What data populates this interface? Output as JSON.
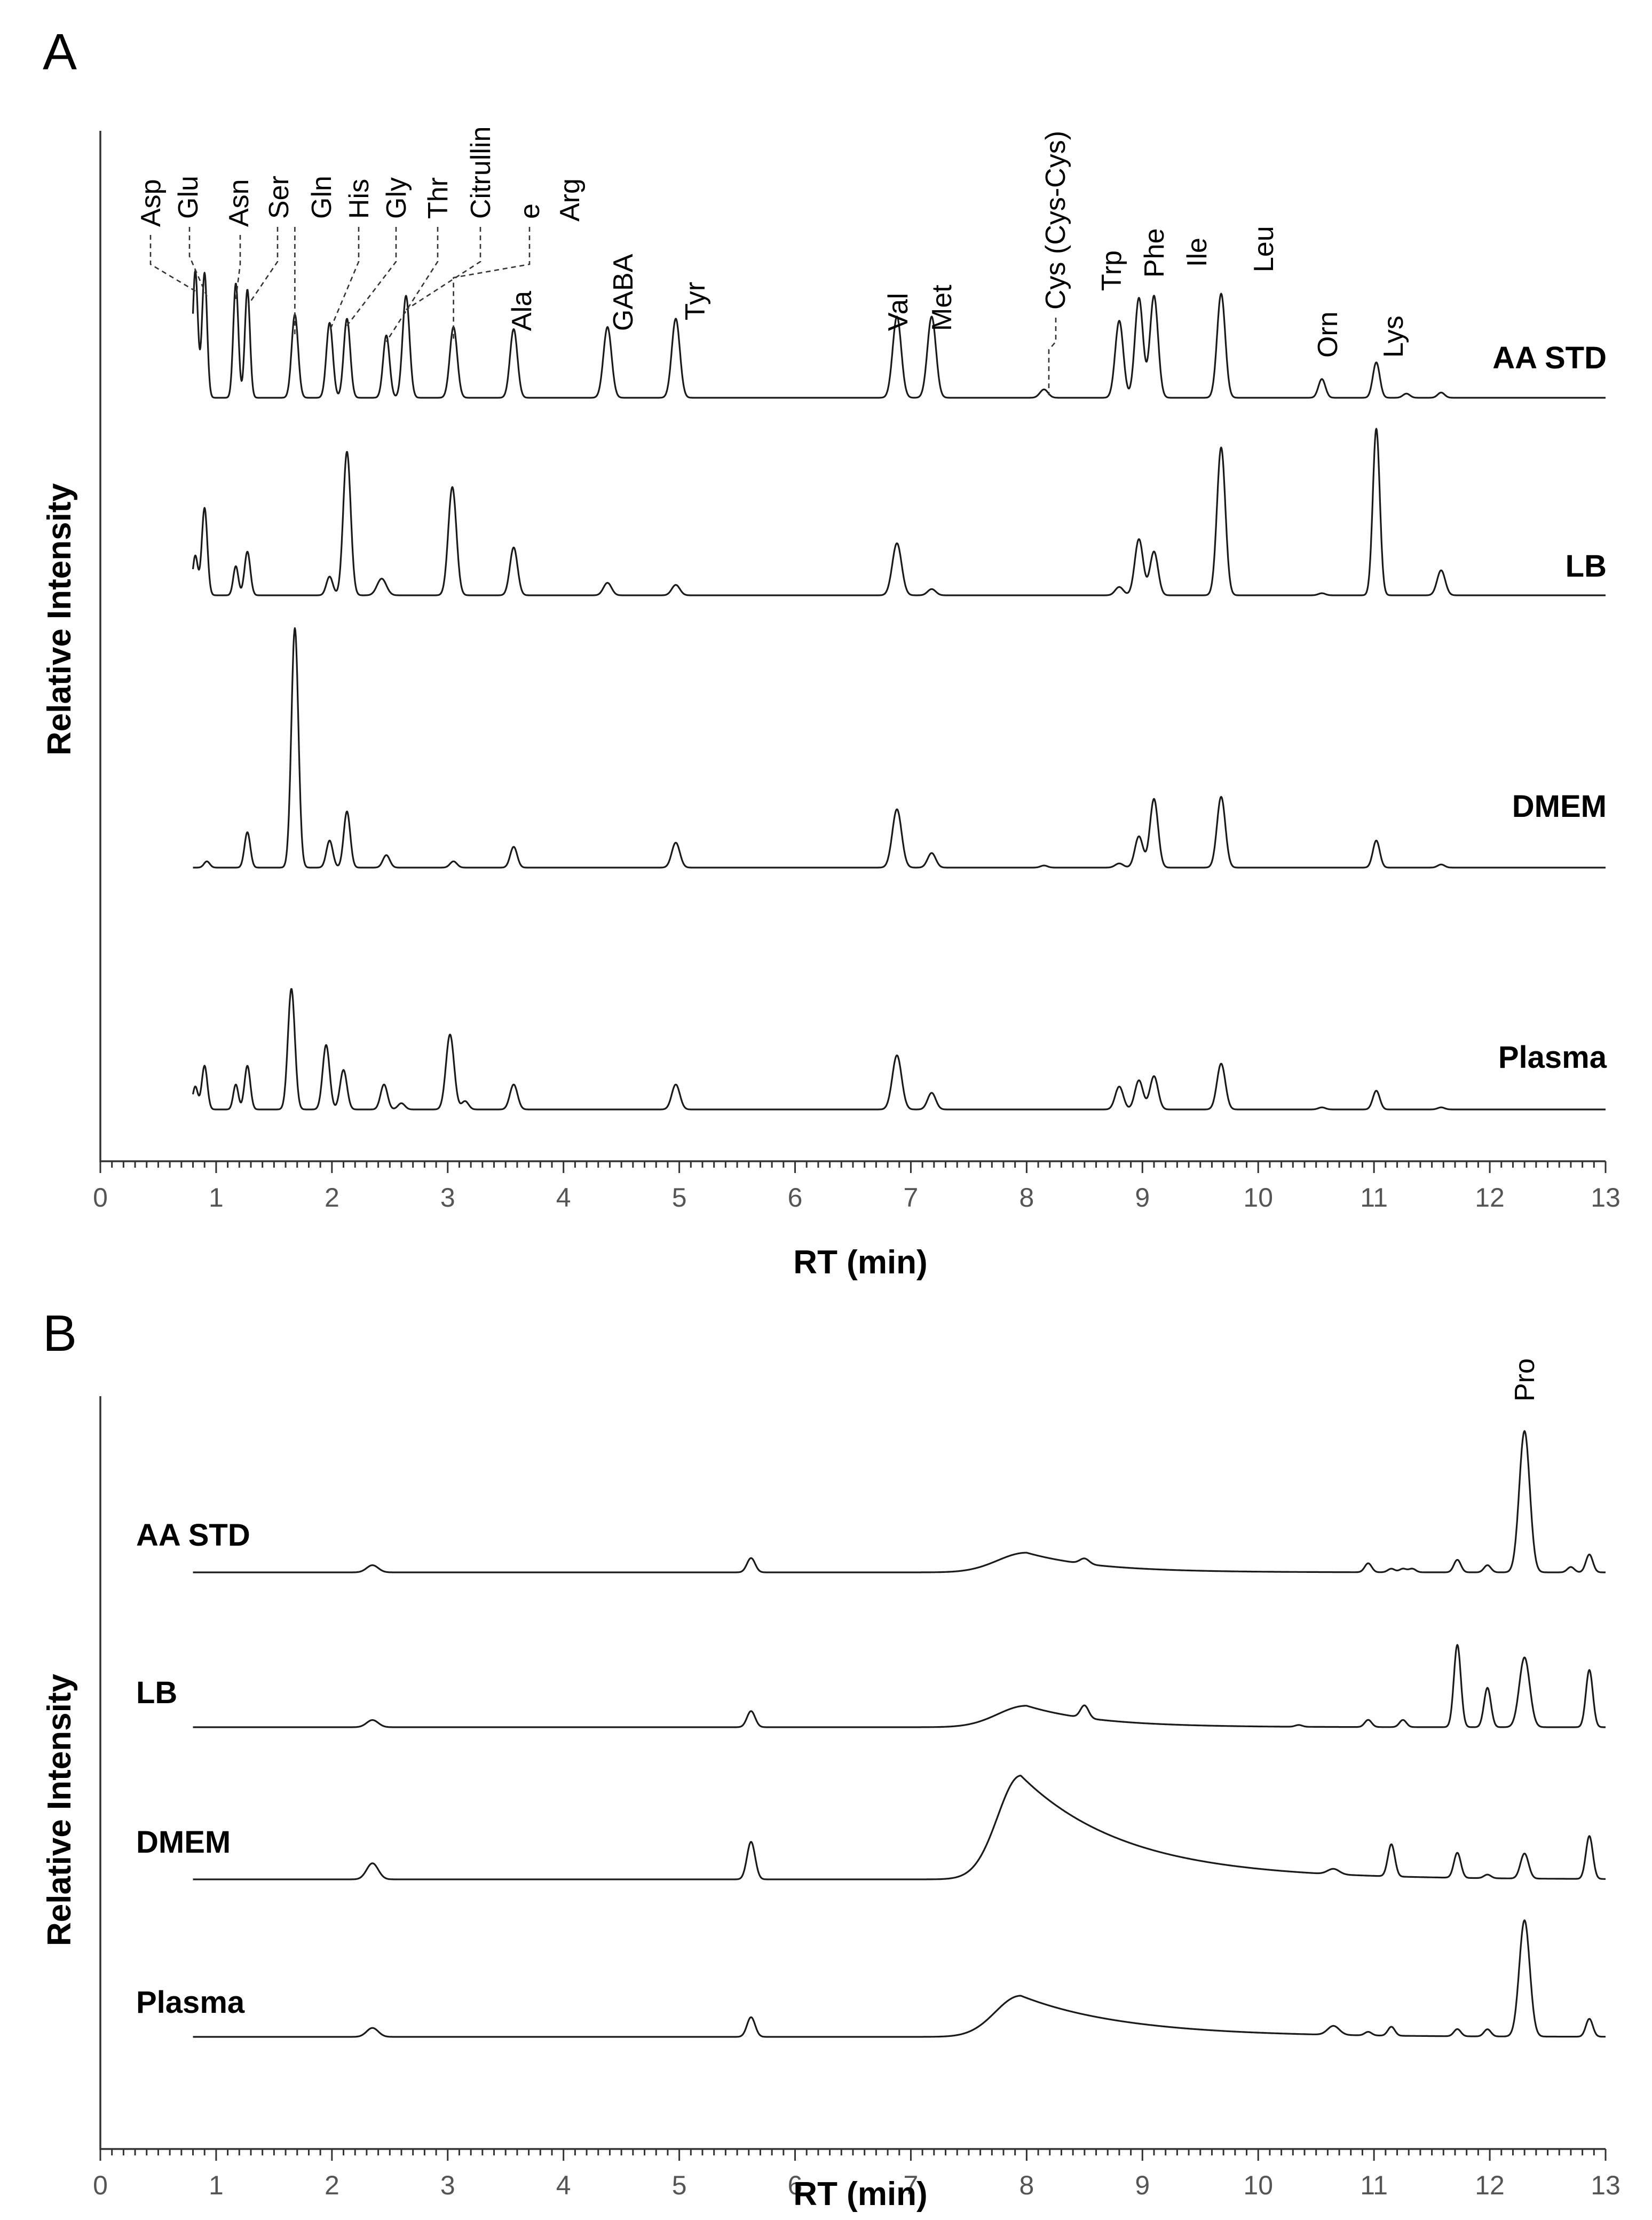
{
  "chart_data": [
    {
      "type": "line",
      "panel": "A",
      "xlabel": "RT (min)",
      "ylabel": "Relative Intensity",
      "xlim": [
        0,
        13
      ],
      "x_ticks": [
        "0",
        "1",
        "2",
        "3",
        "4",
        "5",
        "6",
        "7",
        "8",
        "9",
        "10",
        "11",
        "12",
        "13"
      ],
      "grid": false,
      "peak_labels": [
        {
          "text": "Asp",
          "rt": 0.82
        },
        {
          "text": "Glu",
          "rt": 0.92
        },
        {
          "text": "Asn",
          "rt": 1.17
        },
        {
          "text": "Ser",
          "rt": 1.28
        },
        {
          "text": "Gln",
          "rt": 1.68
        },
        {
          "text": "His",
          "rt": 1.98
        },
        {
          "text": "Gly",
          "rt": 2.13
        },
        {
          "text": "Thr",
          "rt": 2.47
        },
        {
          "text": "Citrullin",
          "rt": 2.64
        },
        {
          "text": "e",
          "rt": 3.05
        },
        {
          "text": "Arg",
          "rt": 3.05
        },
        {
          "text": "Ala",
          "rt": 3.57
        },
        {
          "text": "GABA",
          "rt": 4.38
        },
        {
          "text": "Tyr",
          "rt": 4.97
        },
        {
          "text": "Val",
          "rt": 6.88
        },
        {
          "text": "Met",
          "rt": 7.18
        },
        {
          "text": "Cys (Cys-Cys)",
          "rt": 8.15
        },
        {
          "text": "Trp",
          "rt": 8.8
        },
        {
          "text": "Phe",
          "rt": 8.97
        },
        {
          "text": "Ile",
          "rt": 9.1
        },
        {
          "text": "Leu",
          "rt": 9.68
        },
        {
          "text": "Orn",
          "rt": 10.55
        },
        {
          "text": "Lys",
          "rt": 11.02
        }
      ],
      "series": [
        {
          "name": "AA STD",
          "peaks": [
            [
              0.82,
              0.61,
              0.022
            ],
            [
              0.9,
              0.6,
              0.022
            ],
            [
              1.17,
              0.55,
              0.022
            ],
            [
              1.27,
              0.52,
              0.022
            ],
            [
              1.68,
              0.4,
              0.028
            ],
            [
              1.98,
              0.36,
              0.028
            ],
            [
              2.13,
              0.38,
              0.028
            ],
            [
              2.47,
              0.3,
              0.028
            ],
            [
              2.64,
              0.49,
              0.03
            ],
            [
              3.05,
              0.34,
              0.032
            ],
            [
              3.57,
              0.33,
              0.032
            ],
            [
              4.38,
              0.34,
              0.035
            ],
            [
              4.97,
              0.38,
              0.035
            ],
            [
              6.88,
              0.39,
              0.037
            ],
            [
              7.18,
              0.39,
              0.037
            ],
            [
              8.15,
              0.04,
              0.035
            ],
            [
              8.8,
              0.37,
              0.035
            ],
            [
              8.97,
              0.48,
              0.035
            ],
            [
              9.1,
              0.49,
              0.035
            ],
            [
              9.68,
              0.5,
              0.035
            ],
            [
              10.55,
              0.09,
              0.03
            ],
            [
              11.02,
              0.17,
              0.03
            ],
            [
              11.28,
              0.02,
              0.03
            ],
            [
              11.58,
              0.025,
              0.03
            ]
          ]
        },
        {
          "name": "LB",
          "peaks": [
            [
              0.82,
              0.19,
              0.022
            ],
            [
              0.9,
              0.42,
              0.024
            ],
            [
              1.17,
              0.14,
              0.022
            ],
            [
              1.27,
              0.21,
              0.025
            ],
            [
              1.98,
              0.09,
              0.028
            ],
            [
              2.13,
              0.69,
              0.032
            ],
            [
              2.43,
              0.08,
              0.04
            ],
            [
              3.04,
              0.52,
              0.035
            ],
            [
              3.57,
              0.23,
              0.033
            ],
            [
              4.38,
              0.06,
              0.035
            ],
            [
              4.97,
              0.05,
              0.035
            ],
            [
              6.88,
              0.25,
              0.04
            ],
            [
              7.18,
              0.03,
              0.035
            ],
            [
              8.8,
              0.04,
              0.035
            ],
            [
              8.97,
              0.27,
              0.036
            ],
            [
              9.1,
              0.21,
              0.035
            ],
            [
              9.68,
              0.71,
              0.036
            ],
            [
              10.55,
              0.01,
              0.03
            ],
            [
              11.02,
              0.8,
              0.03
            ],
            [
              11.58,
              0.12,
              0.035
            ]
          ]
        },
        {
          "name": "DMEM",
          "peaks": [
            [
              0.92,
              0.03,
              0.025
            ],
            [
              1.27,
              0.17,
              0.025
            ],
            [
              1.68,
              1.15,
              0.03
            ],
            [
              1.98,
              0.13,
              0.028
            ],
            [
              2.13,
              0.27,
              0.028
            ],
            [
              2.47,
              0.06,
              0.03
            ],
            [
              3.05,
              0.03,
              0.03
            ],
            [
              3.57,
              0.1,
              0.03
            ],
            [
              4.97,
              0.12,
              0.035
            ],
            [
              6.88,
              0.28,
              0.04
            ],
            [
              7.18,
              0.07,
              0.035
            ],
            [
              8.15,
              0.01,
              0.03
            ],
            [
              8.8,
              0.02,
              0.035
            ],
            [
              8.97,
              0.15,
              0.035
            ],
            [
              9.1,
              0.33,
              0.035
            ],
            [
              9.68,
              0.34,
              0.036
            ],
            [
              11.02,
              0.13,
              0.03
            ],
            [
              11.58,
              0.015,
              0.03
            ]
          ]
        },
        {
          "name": "Plasma",
          "peaks": [
            [
              0.82,
              0.11,
              0.022
            ],
            [
              0.9,
              0.21,
              0.024
            ],
            [
              1.17,
              0.12,
              0.022
            ],
            [
              1.27,
              0.21,
              0.025
            ],
            [
              1.65,
              0.58,
              0.03
            ],
            [
              1.95,
              0.31,
              0.03
            ],
            [
              2.1,
              0.19,
              0.03
            ],
            [
              2.45,
              0.12,
              0.03
            ],
            [
              2.6,
              0.03,
              0.03
            ],
            [
              3.02,
              0.36,
              0.035
            ],
            [
              3.15,
              0.04,
              0.03
            ],
            [
              3.57,
              0.12,
              0.033
            ],
            [
              4.97,
              0.12,
              0.035
            ],
            [
              6.88,
              0.26,
              0.04
            ],
            [
              7.18,
              0.08,
              0.035
            ],
            [
              8.8,
              0.11,
              0.035
            ],
            [
              8.97,
              0.14,
              0.035
            ],
            [
              9.1,
              0.16,
              0.035
            ],
            [
              9.68,
              0.22,
              0.036
            ],
            [
              10.55,
              0.01,
              0.03
            ],
            [
              11.02,
              0.09,
              0.03
            ],
            [
              11.58,
              0.01,
              0.03
            ]
          ]
        }
      ]
    },
    {
      "type": "line",
      "panel": "B",
      "xlabel": "RT (min)",
      "ylabel": "Relative Intensity",
      "xlim": [
        0,
        13
      ],
      "x_ticks": [
        "0",
        "1",
        "2",
        "3",
        "4",
        "5",
        "6",
        "7",
        "8",
        "9",
        "10",
        "11",
        "12",
        "13"
      ],
      "grid": false,
      "peak_labels": [
        {
          "text": "Pro",
          "rt": 12.3
        }
      ],
      "series": [
        {
          "name": "AA STD",
          "peaks": [
            [
              2.35,
              0.04,
              0.05
            ],
            [
              5.62,
              0.08,
              0.035
            ],
            [
              8.5,
              0.03,
              0.04
            ],
            [
              10.95,
              0.05,
              0.03
            ],
            [
              11.15,
              0.02,
              0.03
            ],
            [
              11.25,
              0.02,
              0.03
            ],
            [
              11.33,
              0.02,
              0.03
            ],
            [
              11.72,
              0.07,
              0.03
            ],
            [
              11.98,
              0.04,
              0.03
            ],
            [
              12.3,
              0.79,
              0.045
            ],
            [
              12.7,
              0.03,
              0.03
            ],
            [
              12.86,
              0.1,
              0.03
            ]
          ],
          "humps": [
            [
              8.0,
              0.11,
              0.25,
              0.6
            ]
          ]
        },
        {
          "name": "LB",
          "peaks": [
            [
              2.35,
              0.04,
              0.05
            ],
            [
              5.62,
              0.09,
              0.035
            ],
            [
              8.5,
              0.07,
              0.035
            ],
            [
              10.35,
              0.01,
              0.03
            ],
            [
              10.95,
              0.04,
              0.03
            ],
            [
              11.25,
              0.04,
              0.03
            ],
            [
              11.72,
              0.46,
              0.03
            ],
            [
              11.98,
              0.22,
              0.03
            ],
            [
              12.3,
              0.39,
              0.045
            ],
            [
              12.86,
              0.32,
              0.03
            ]
          ],
          "humps": [
            [
              8.0,
              0.12,
              0.25,
              0.6
            ]
          ]
        },
        {
          "name": "DMEM",
          "peaks": [
            [
              2.35,
              0.09,
              0.05
            ],
            [
              5.62,
              0.21,
              0.035
            ],
            [
              10.65,
              0.03,
              0.05
            ],
            [
              11.15,
              0.18,
              0.03
            ],
            [
              11.72,
              0.14,
              0.03
            ],
            [
              11.98,
              0.02,
              0.03
            ],
            [
              12.3,
              0.14,
              0.035
            ],
            [
              12.86,
              0.24,
              0.03
            ]
          ],
          "humps": [
            [
              7.95,
              0.58,
              0.2,
              0.9
            ]
          ]
        },
        {
          "name": "Plasma",
          "peaks": [
            [
              2.35,
              0.05,
              0.05
            ],
            [
              5.62,
              0.11,
              0.035
            ],
            [
              10.65,
              0.05,
              0.05
            ],
            [
              10.95,
              0.02,
              0.03
            ],
            [
              11.15,
              0.05,
              0.03
            ],
            [
              11.72,
              0.04,
              0.03
            ],
            [
              11.98,
              0.04,
              0.03
            ],
            [
              12.3,
              0.65,
              0.045
            ],
            [
              12.86,
              0.1,
              0.03
            ]
          ],
          "humps": [
            [
              7.95,
              0.23,
              0.22,
              0.9
            ]
          ]
        }
      ]
    }
  ],
  "panels": {
    "A": {
      "letter": "A"
    },
    "B": {
      "letter": "B"
    }
  }
}
